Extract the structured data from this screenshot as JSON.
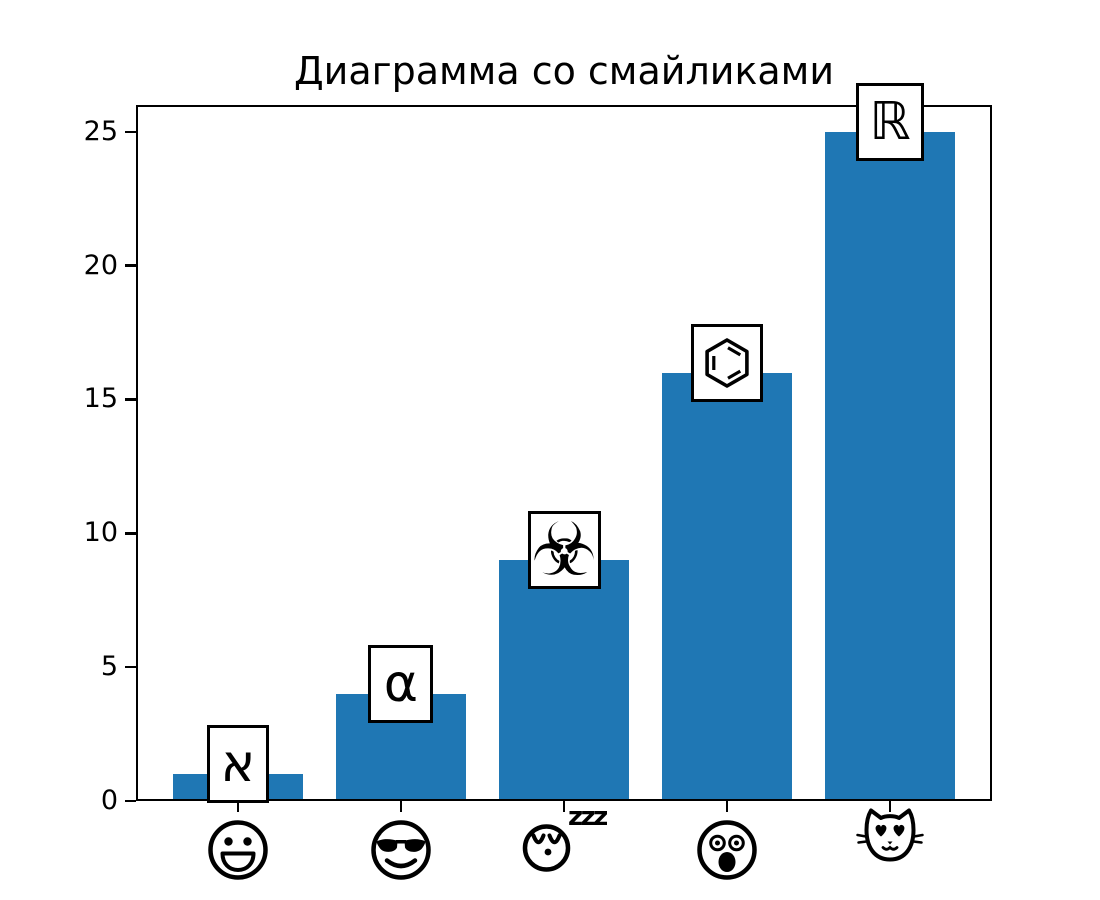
{
  "chart_data": {
    "type": "bar",
    "title": "Диаграмма со смайликами",
    "categories": [
      {
        "name": "grinning-face",
        "emoji": "😃"
      },
      {
        "name": "smiling-face-with-sunglasses",
        "emoji": "😎"
      },
      {
        "name": "sleeping-face-with-zzz",
        "emoji": "😴",
        "zzz_text": "zzz"
      },
      {
        "name": "astonished-face",
        "emoji": "😲"
      },
      {
        "name": "smiling-cat-with-heart-eyes",
        "emoji": "😻"
      }
    ],
    "values": [
      1,
      4,
      9,
      16,
      25
    ],
    "bar_labels": [
      {
        "glyph": "א",
        "name": "hebrew-aleph"
      },
      {
        "glyph": "α",
        "name": "greek-alpha"
      },
      {
        "glyph": "☣",
        "name": "biohazard-sign"
      },
      {
        "glyph": "⌬",
        "name": "benzene-ring"
      },
      {
        "glyph": "ℝ",
        "name": "double-struck-capital-r"
      }
    ],
    "yticks": [
      "0",
      "5",
      "10",
      "15",
      "20",
      "25"
    ],
    "ylim": [
      0,
      26
    ],
    "xlabel": "",
    "ylabel": "",
    "bar_color": "#1f77b4",
    "axis_color": "#000000",
    "background_color": "#ffffff",
    "grid": false,
    "legend": null
  }
}
